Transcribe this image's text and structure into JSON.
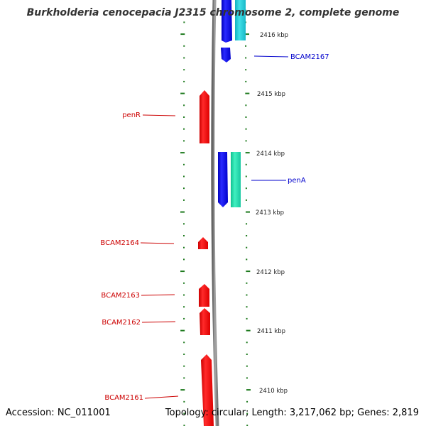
{
  "title": "Burkholderia cenocepacia J2315 chromosome 2, complete genome",
  "accession": "Accession: NC_011001",
  "summary": "Topology: circular; Length: 3,217,062 bp; Genes: 2,819",
  "colors": {
    "forward_cds": "#ff0000",
    "reverse_cds": "#0000ee",
    "reverse_gene": "#22e8b0",
    "backbone": "#888888",
    "ticks": "#1e7a1e",
    "forward_label": "#cc0000",
    "reverse_label": "#0000cc"
  },
  "position_labels": [
    "2416 kbp",
    "2415 kbp",
    "2414 kbp",
    "2413 kbp",
    "2412 kbp",
    "2411 kbp",
    "2410 kbp"
  ],
  "gene_labels": {
    "bcam2167": "BCAM2167",
    "pena": "penA",
    "penr": "penR",
    "bcam2164": "BCAM2164",
    "bcam2163": "BCAM2163",
    "bcam2162": "BCAM2162",
    "bcam2161": "BCAM2161"
  }
}
